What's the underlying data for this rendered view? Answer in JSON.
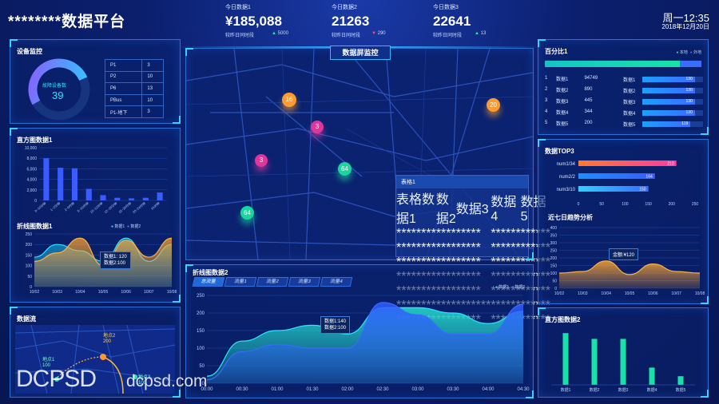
{
  "header": {
    "title": "********数据平台",
    "weekday_time": "周一12:35",
    "date": "2018年12月20日"
  },
  "kpis": [
    {
      "label": "今日数据1",
      "value": "¥185,088",
      "compare": "较昨日同时段",
      "delta": "5000",
      "dir": "up"
    },
    {
      "label": "今日数据2",
      "value": "21263",
      "compare": "较昨日同时段",
      "delta": "290",
      "dir": "down"
    },
    {
      "label": "今日数据3",
      "value": "22641",
      "compare": "较昨日同时段",
      "delta": "13",
      "dir": "up"
    }
  ],
  "device": {
    "title": "设备监控",
    "gauge_label": "故障设备数",
    "gauge_value": "39",
    "gauge_fraction": 0.62,
    "rows": [
      [
        "P1",
        "3"
      ],
      [
        "P2",
        "10"
      ],
      [
        "P6",
        "13"
      ],
      [
        "PBus",
        "10"
      ],
      [
        "P1-地下",
        "3"
      ]
    ]
  },
  "map": {
    "title": "数据屏监控",
    "markers": [
      "16",
      "3",
      "3",
      "64",
      "64",
      "20"
    ]
  },
  "table1": {
    "title": "表格1",
    "headers": [
      "表格数据1",
      "数据2",
      "数据3",
      "数据4",
      "数据5"
    ],
    "rows": [
      [
        "********",
        "****",
        "*****",
        "******",
        "******"
      ],
      [
        "********",
        "****",
        "*****",
        "******",
        "******"
      ],
      [
        "********",
        "****",
        "*****",
        "******",
        "******"
      ],
      [
        "********",
        "****",
        "*****",
        "******",
        "******"
      ],
      [
        "********",
        "****",
        "*****",
        "******",
        "******"
      ],
      [
        "********",
        "****",
        "*******",
        "******",
        "******"
      ],
      [
        "********",
        "****",
        "*****",
        "******",
        "******"
      ]
    ]
  },
  "pct": {
    "title": "百分比1",
    "legend": [
      "本地",
      "外地"
    ],
    "rows": [
      [
        "1",
        "数据1",
        "94749"
      ],
      [
        "2",
        "数据2",
        "890"
      ],
      [
        "3",
        "数据3",
        "445"
      ],
      [
        "4",
        "数据4",
        "344"
      ],
      [
        "5",
        "数据5",
        "200"
      ]
    ],
    "bars": [
      {
        "label": "数据1",
        "value": 130
      },
      {
        "label": "数据2",
        "value": 130
      },
      {
        "label": "数据3",
        "value": 130
      },
      {
        "label": "数据4",
        "value": 130
      },
      {
        "label": "数据5",
        "value": 119
      }
    ]
  },
  "top3": {
    "title": "数据TOP3"
  },
  "trend": {
    "title": "近七日趋势分析",
    "tooltip": "金额:¥120"
  },
  "line1": {
    "title": "折线图数据1",
    "tooltip1": "数据1: 120",
    "tooltip2": "数据2:100"
  },
  "line2": {
    "title": "折线图数据2",
    "tabs": [
      "总流量",
      "流量1",
      "流量2",
      "流量3",
      "流量4"
    ],
    "tooltip1": "数据1:140",
    "tooltip2": "数据2:100"
  },
  "flow": {
    "title": "数据流",
    "point1": "地点2",
    "val1": "200",
    "point2": "地点1",
    "val2": "100",
    "point3": "地点3",
    "val3": "100"
  },
  "watermark": {
    "left": "DCPSD",
    "right": "dcpsd.com"
  },
  "chart_data": [
    {
      "type": "bar",
      "title": "直方图数据1",
      "categories": [
        "0~10分钟",
        "1~2分钟",
        "2~5分钟",
        "5~10分钟",
        "10~12分钟",
        "12~15分钟",
        "15~20分钟",
        "20~24分钟",
        "24分钟"
      ],
      "values": [
        8000,
        6200,
        6100,
        2200,
        1000,
        500,
        400,
        500,
        1500
      ],
      "ylim": [
        0,
        10000
      ],
      "yticks": [
        "0",
        "2,000",
        "4,000",
        "6,000",
        "8,000",
        "10,000"
      ],
      "color": "#3a5cff"
    },
    {
      "type": "area",
      "title": "折线图数据1",
      "x": [
        "10/02",
        "10/03",
        "10/04",
        "10/05",
        "10/06",
        "10/07",
        "10/08"
      ],
      "series": [
        {
          "name": "数据1",
          "values": [
            140,
            200,
            170,
            120,
            230,
            120,
            200
          ]
        },
        {
          "name": "数据2",
          "values": [
            120,
            160,
            230,
            100,
            220,
            140,
            230
          ]
        }
      ],
      "ylim": [
        0,
        250
      ],
      "yticks": [
        "0",
        "50",
        "100",
        "150",
        "200",
        "250"
      ]
    },
    {
      "type": "bar",
      "title": "数据TOP3",
      "categories": [
        "num1/34",
        "num2/2",
        "num3/10"
      ],
      "values": [
        210,
        164,
        150
      ],
      "xlim": [
        0,
        250
      ],
      "xticks": [
        "0",
        "50",
        "100",
        "150",
        "200",
        "250"
      ]
    },
    {
      "type": "area",
      "title": "近七日趋势分析",
      "x": [
        "10/02",
        "10/03",
        "10/04",
        "10/05",
        "10/06",
        "10/07",
        "10/08"
      ],
      "series": [
        {
          "values": [
            100,
            110,
            180,
            90,
            160,
            110,
            100
          ]
        }
      ],
      "ylim": [
        0,
        400
      ],
      "yticks": [
        "0",
        "50",
        "100",
        "150",
        "200",
        "250",
        "300",
        "350",
        "400"
      ]
    },
    {
      "type": "area",
      "title": "折线图数据2",
      "x": [
        "00:00",
        "00:30",
        "01:00",
        "01:30",
        "02:00",
        "02:30",
        "03:00",
        "03:30",
        "04:00",
        "04:30"
      ],
      "series": [
        {
          "name": "数据1",
          "values": [
            20,
            120,
            150,
            165,
            140,
            215,
            215,
            200,
            170,
            205
          ]
        },
        {
          "name": "数据2",
          "values": [
            10,
            90,
            110,
            100,
            100,
            230,
            195,
            140,
            140,
            225
          ]
        }
      ],
      "ylim": [
        0,
        250
      ],
      "yticks": [
        "0",
        "50",
        "100",
        "150",
        "200",
        "250"
      ]
    },
    {
      "type": "bar",
      "title": "直方图数据2",
      "categories": [
        "数据1",
        "数据2",
        "数据3",
        "数据4",
        "数据5"
      ],
      "values": [
        90,
        80,
        80,
        30,
        15
      ],
      "ylim": [
        0,
        100
      ],
      "color": "#19e2a8"
    }
  ]
}
